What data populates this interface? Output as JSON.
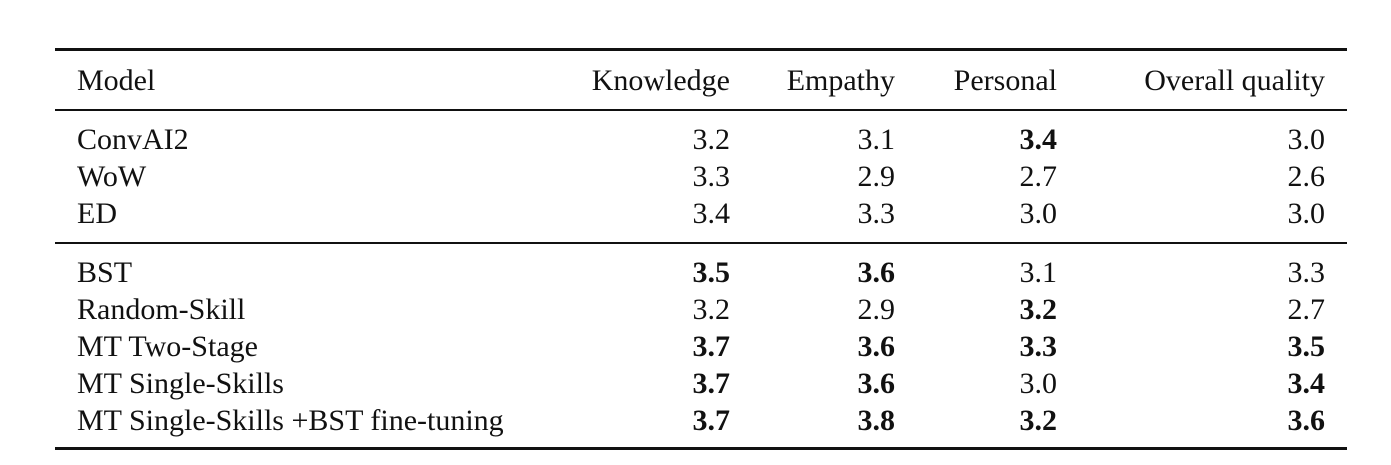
{
  "table": {
    "headers": [
      "Model",
      "Knowledge",
      "Empathy",
      "Personal",
      "Overall quality"
    ],
    "groups": [
      {
        "rows": [
          {
            "model": "ConvAI2",
            "values": [
              "3.2",
              "3.1",
              "3.4",
              "3.0"
            ],
            "bold": [
              false,
              false,
              true,
              false
            ]
          },
          {
            "model": "WoW",
            "values": [
              "3.3",
              "2.9",
              "2.7",
              "2.6"
            ],
            "bold": [
              false,
              false,
              false,
              false
            ]
          },
          {
            "model": "ED",
            "values": [
              "3.4",
              "3.3",
              "3.0",
              "3.0"
            ],
            "bold": [
              false,
              false,
              false,
              false
            ]
          }
        ]
      },
      {
        "rows": [
          {
            "model": "BST",
            "values": [
              "3.5",
              "3.6",
              "3.1",
              "3.3"
            ],
            "bold": [
              true,
              true,
              false,
              false
            ]
          },
          {
            "model": "Random-Skill",
            "values": [
              "3.2",
              "2.9",
              "3.2",
              "2.7"
            ],
            "bold": [
              false,
              false,
              true,
              false
            ]
          },
          {
            "model": "MT Two-Stage",
            "values": [
              "3.7",
              "3.6",
              "3.3",
              "3.5"
            ],
            "bold": [
              true,
              true,
              true,
              true
            ]
          },
          {
            "model": "MT Single-Skills",
            "values": [
              "3.7",
              "3.6",
              "3.0",
              "3.4"
            ],
            "bold": [
              true,
              true,
              false,
              true
            ]
          },
          {
            "model": "MT Single-Skills +BST fine-tuning",
            "values": [
              "3.7",
              "3.8",
              "3.2",
              "3.6"
            ],
            "bold": [
              true,
              true,
              true,
              true
            ]
          }
        ]
      }
    ]
  }
}
